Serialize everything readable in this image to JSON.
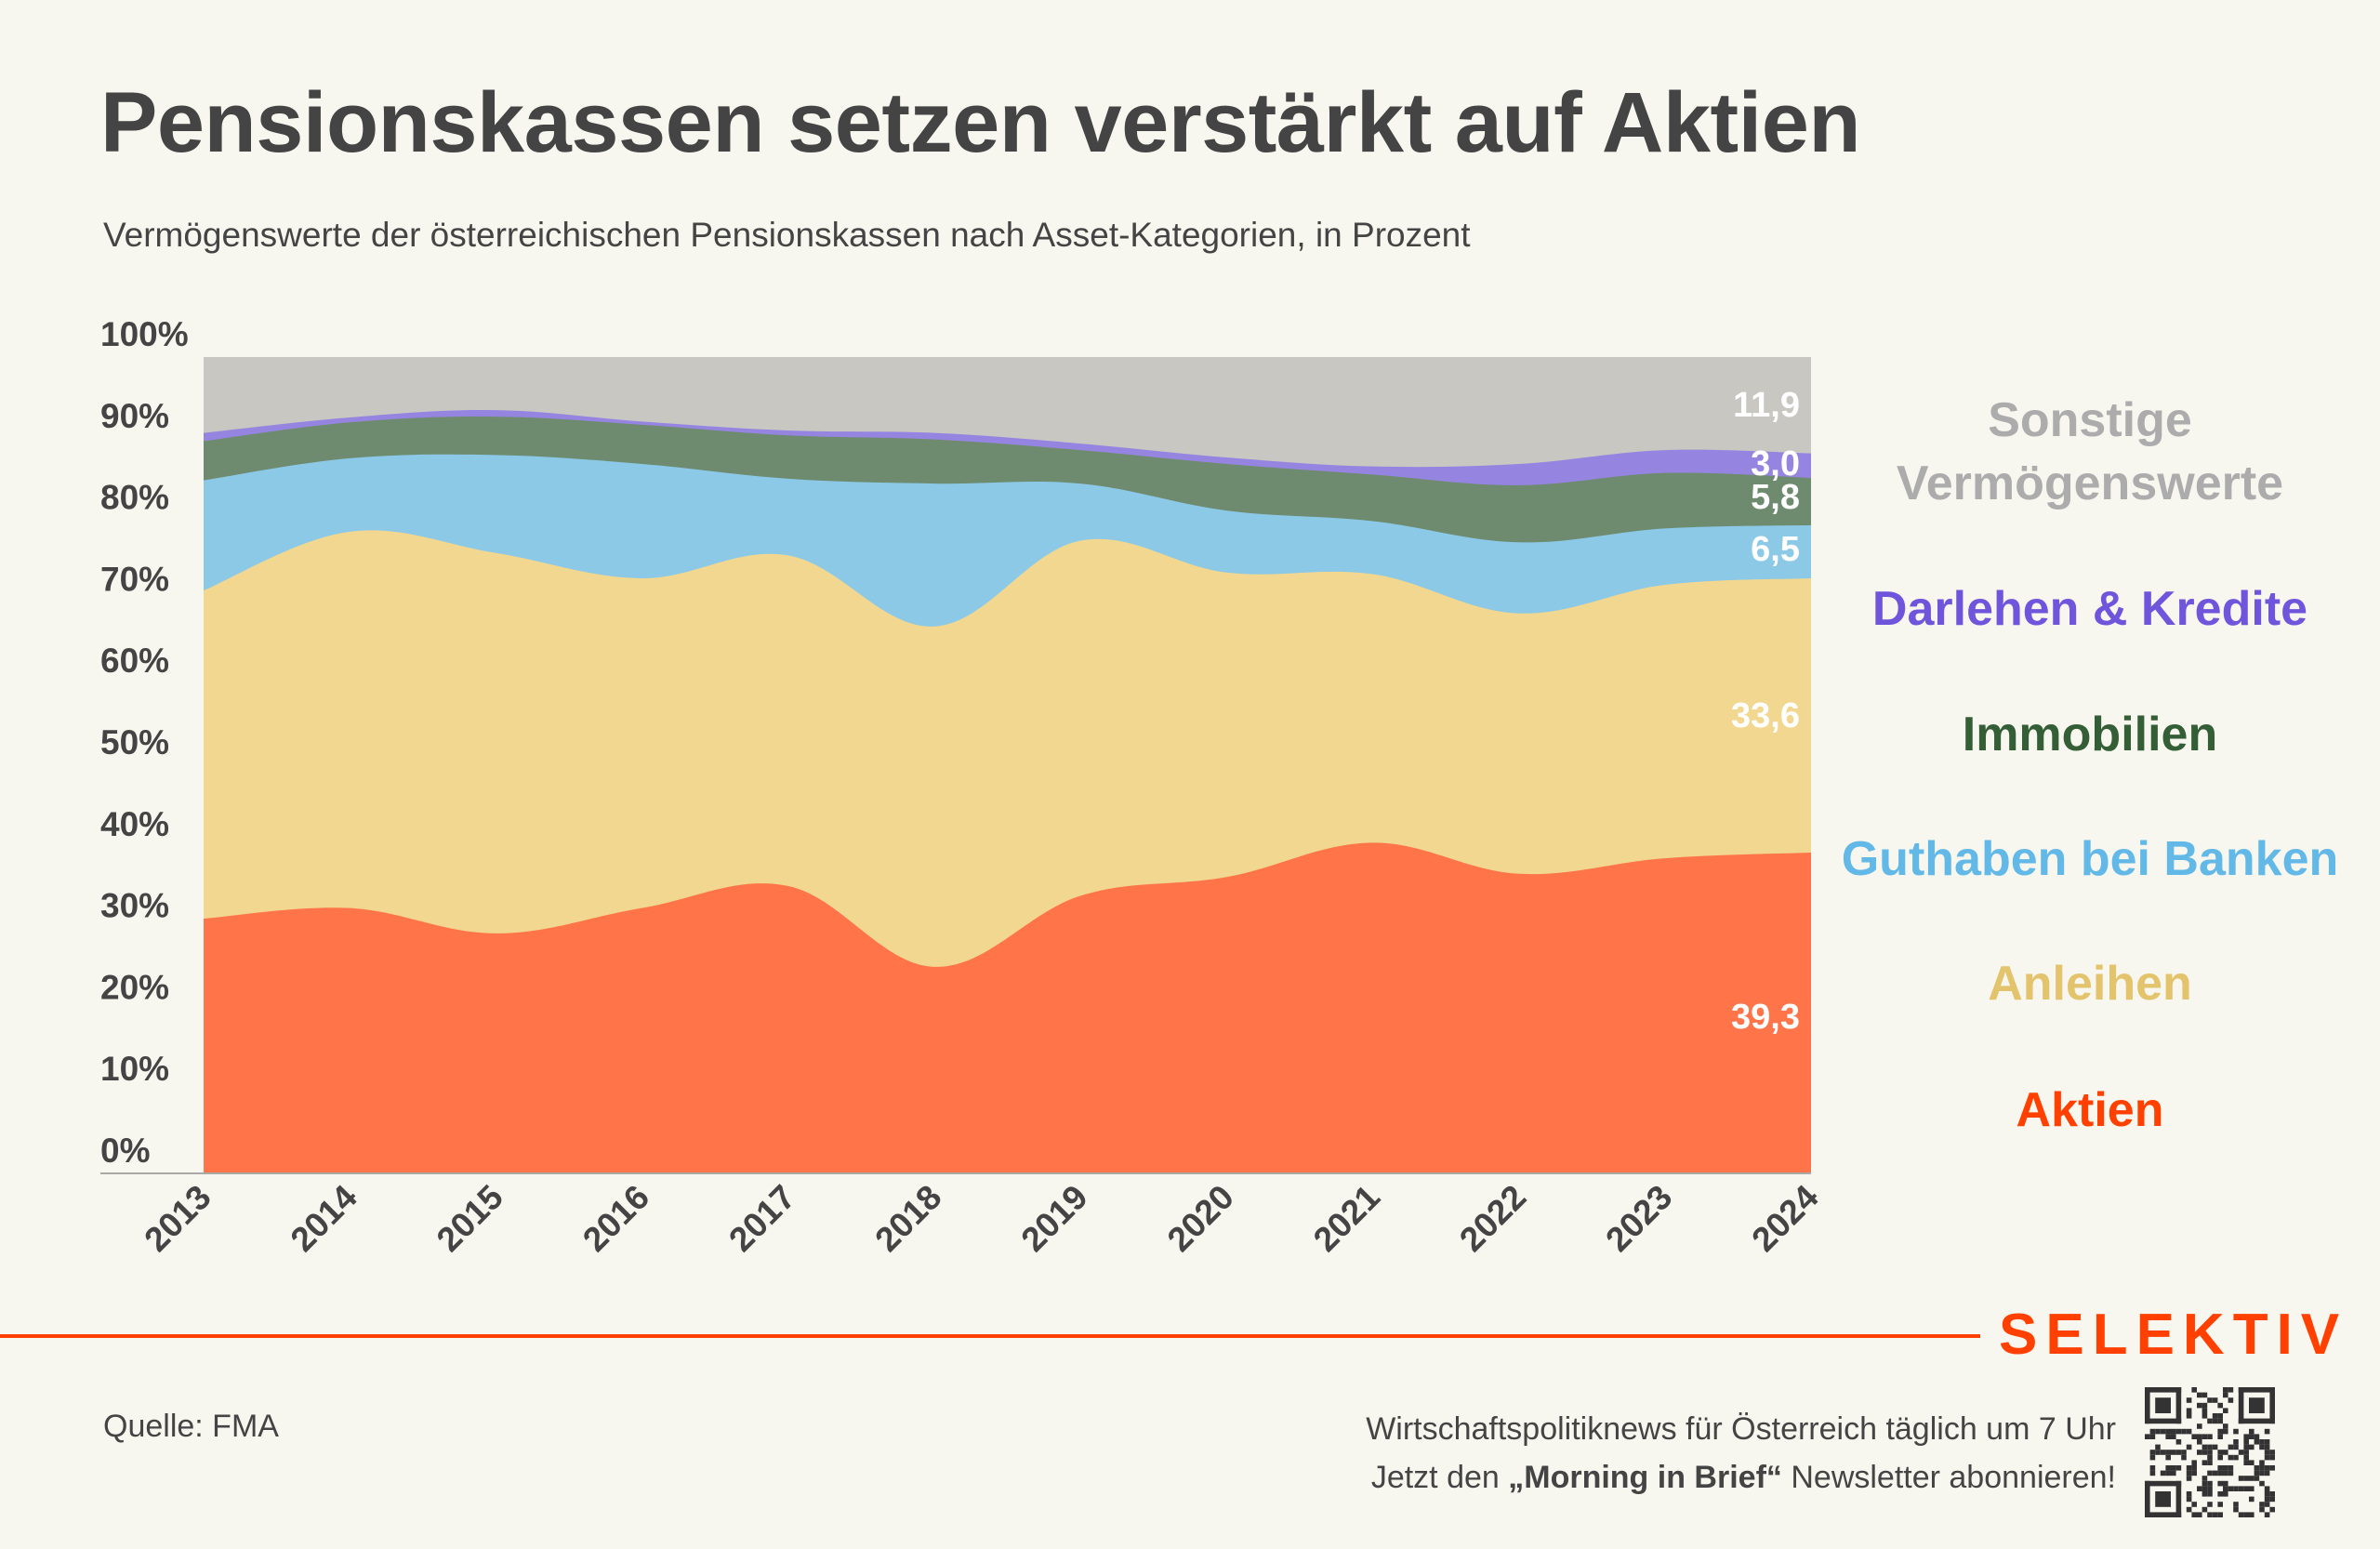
{
  "header": {
    "title": "Pensionskassen setzen verstärkt auf Aktien",
    "subtitle": "Vermögenswerte der österreichischen Pensionskassen nach Asset-Kategorien, in Prozent"
  },
  "chart_data": {
    "type": "area",
    "stacked": true,
    "smooth": true,
    "title": "Pensionskassen setzen verstärkt auf Aktien",
    "subtitle": "Vermögenswerte der österreichischen Pensionskassen nach Asset-Kategorien, in Prozent",
    "xlabel": "",
    "ylabel": "",
    "x": [
      "2013",
      "2014",
      "2015",
      "2016",
      "2017",
      "2018",
      "2019",
      "2020",
      "2021",
      "2022",
      "2023",
      "2024"
    ],
    "ylim": [
      0,
      100
    ],
    "yticks": [
      "0%",
      "10%",
      "20%",
      "30%",
      "40%",
      "50%",
      "60%",
      "70%",
      "80%",
      "90%",
      "100%"
    ],
    "grid": false,
    "legend_position": "right",
    "series": [
      {
        "name": "Aktien",
        "color": "#ff7448",
        "label_color": "#ff4000",
        "values": [
          31.2,
          32.5,
          29.4,
          32.5,
          35.2,
          25.3,
          34.0,
          36.3,
          40.5,
          36.7,
          38.6,
          39.3
        ],
        "end_label": "39,3"
      },
      {
        "name": "Anleihen",
        "color": "#f2d790",
        "label_color": "#e3c36c",
        "values": [
          40.2,
          46.1,
          46.6,
          40.4,
          40.5,
          41.7,
          43.5,
          37.3,
          32.9,
          31.9,
          33.5,
          33.6
        ],
        "end_label": "33,6"
      },
      {
        "name": "Guthaben bei Banken",
        "color": "#8cc9e6",
        "label_color": "#62b8e6",
        "values": [
          13.5,
          9.0,
          12.0,
          14.0,
          9.4,
          17.5,
          7.0,
          7.6,
          6.5,
          8.7,
          6.9,
          6.5
        ],
        "end_label": "6,5"
      },
      {
        "name": "Immobilien",
        "color": "#6e8b6f",
        "label_color": "#345e36",
        "values": [
          4.8,
          4.4,
          4.7,
          4.8,
          5.3,
          5.4,
          4.1,
          5.7,
          5.7,
          7.0,
          6.8,
          5.8
        ],
        "end_label": "5,8"
      },
      {
        "name": "Darlehen & Kredite",
        "color": "#9685e0",
        "label_color": "#6f55dc",
        "values": [
          1.0,
          0.6,
          0.8,
          0.4,
          0.6,
          0.8,
          0.8,
          0.8,
          1.0,
          2.6,
          2.8,
          3.0
        ],
        "end_label": "3,0"
      },
      {
        "name": "Sonstige Vermögenswerte",
        "color": "#c8c7c2",
        "label_color": "#acacac",
        "values": [
          9.3,
          7.4,
          6.5,
          7.9,
          9.0,
          9.3,
          10.6,
          12.3,
          13.4,
          13.1,
          11.4,
          11.9
        ],
        "end_label": "11,9"
      }
    ]
  },
  "legend": {
    "sonstige_line1": "Sonstige",
    "sonstige_line2": "Vermögenswerte",
    "darlehen": "Darlehen & Kredite",
    "immobilien": "Immobilien",
    "guthaben": "Guthaben bei Banken",
    "anleihen": "Anleihen",
    "aktien": "Aktien"
  },
  "footer": {
    "brand": "SELEKTIV",
    "source": "Quelle: FMA",
    "promo_line1": "Wirtschaftspolitiknews für Österreich täglich um 7 Uhr",
    "promo_line2_prefix": "Jetzt den ",
    "promo_line2_bold": "„Morning in Brief“",
    "promo_line2_suffix": " Newsletter abonnieren!",
    "qr_icon": "qr-code-icon"
  }
}
